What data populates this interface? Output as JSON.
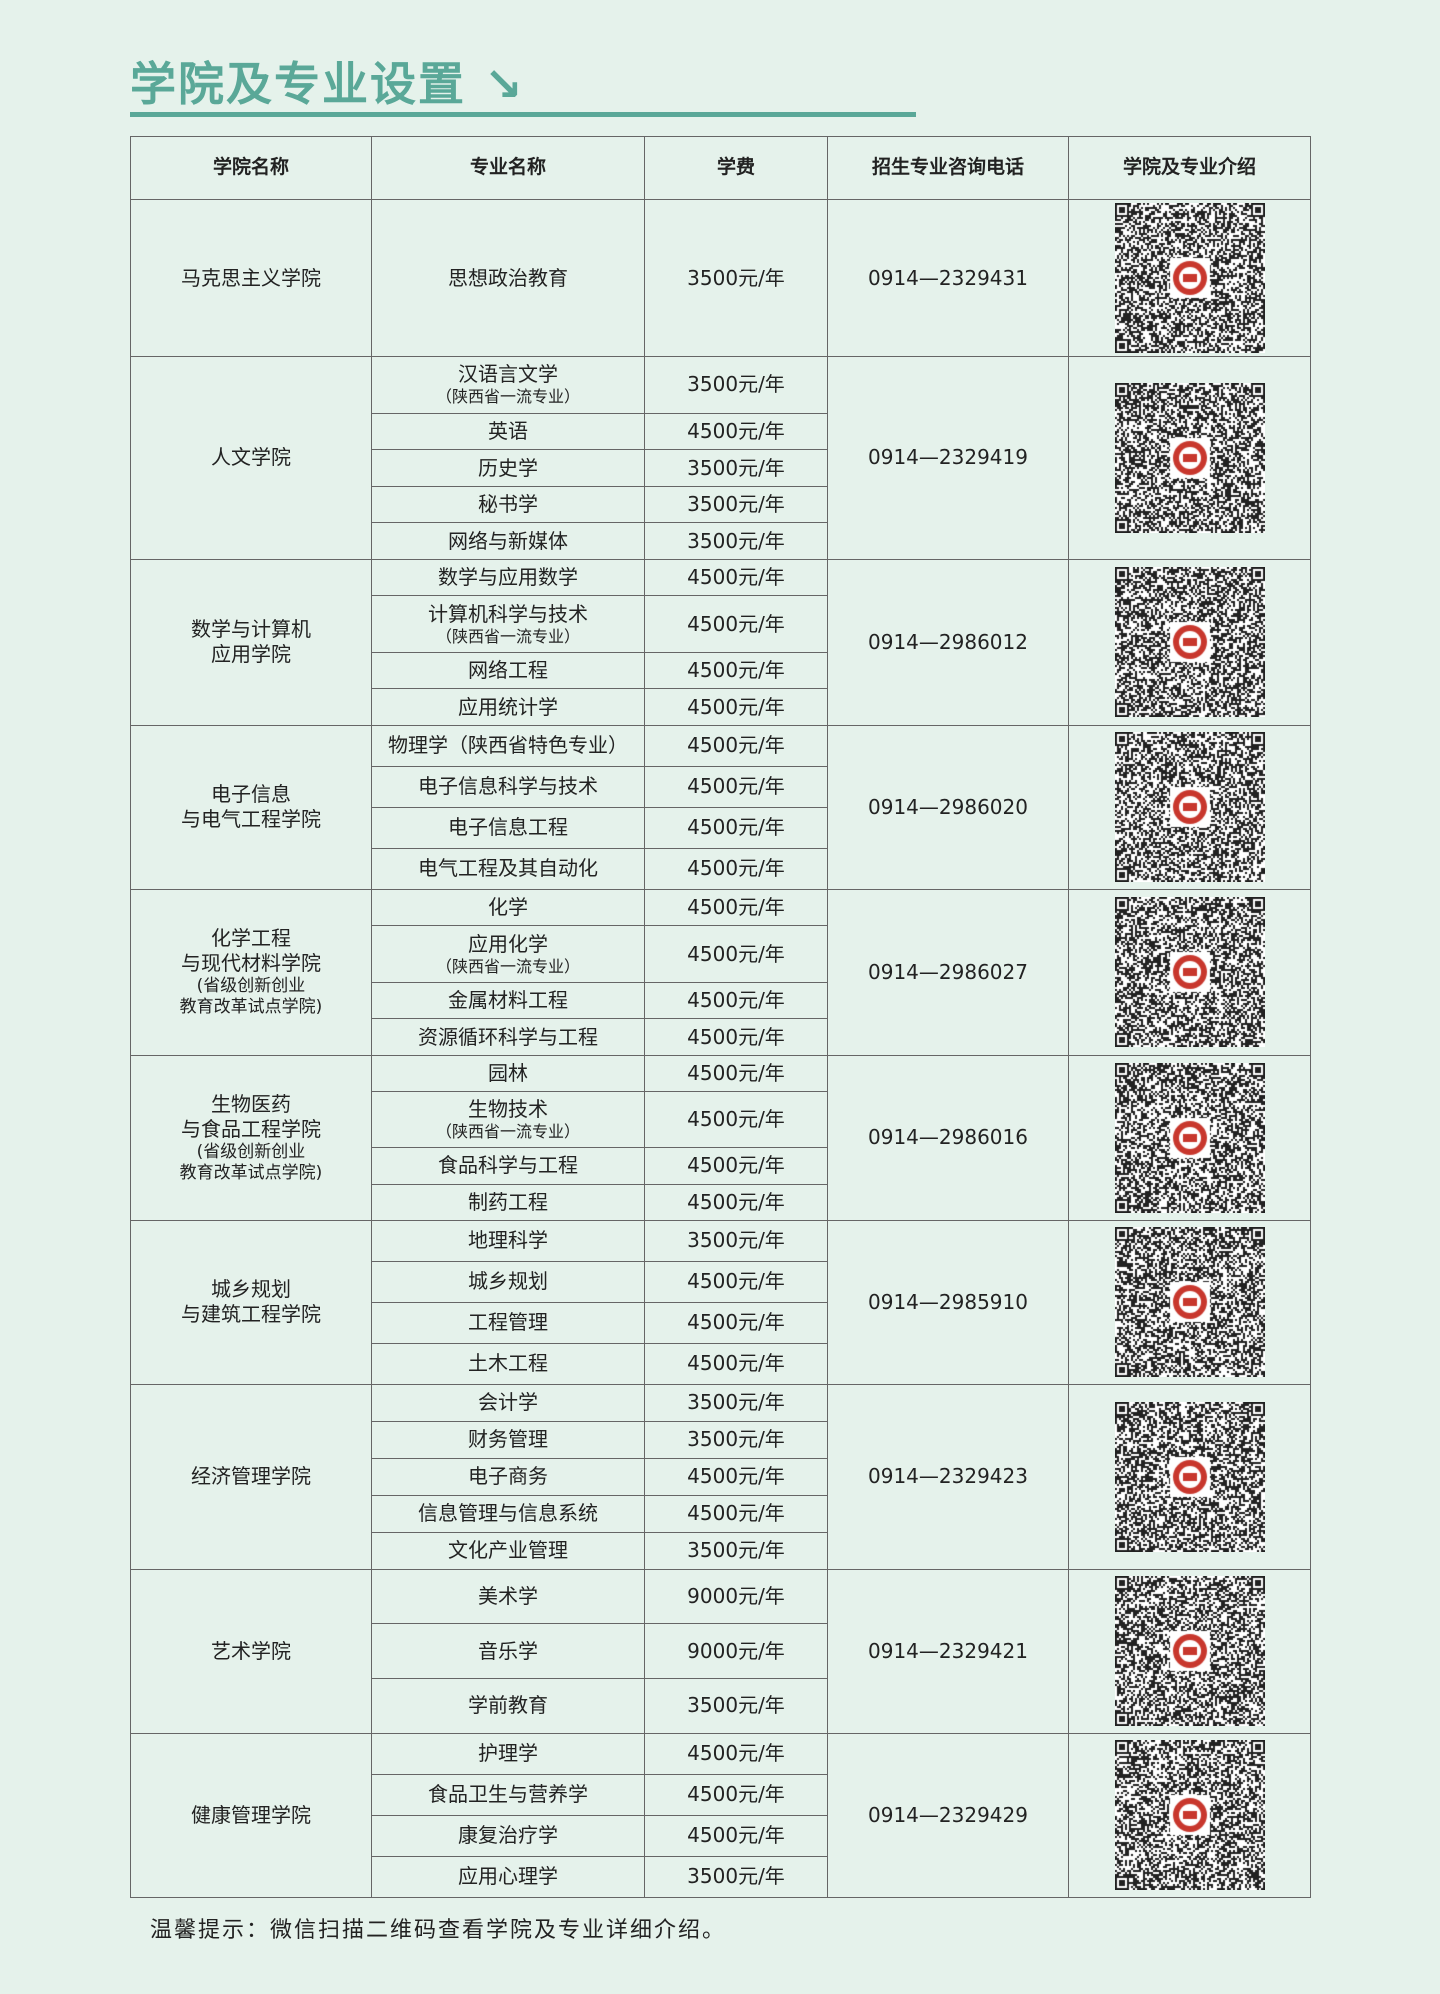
{
  "title": "学院及专业设置",
  "title_icon": "arrow-down-right-icon",
  "colors": {
    "accent": "#5aa898",
    "background": "#e5f2eb",
    "logo_red": "#c8372d"
  },
  "headers": [
    "学院名称",
    "专业名称",
    "学费",
    "招生专业咨询电话",
    "学院及专业介绍"
  ],
  "colleges": [
    {
      "name": "马克思主义学院",
      "note": "",
      "phone": "0914—2329431",
      "majors": [
        {
          "name": "思想政治教育",
          "note": "",
          "fee": "3500元/年"
        }
      ]
    },
    {
      "name": "人文学院",
      "note": "",
      "phone": "0914—2329419",
      "majors": [
        {
          "name": "汉语言文学",
          "note": "（陕西省一流专业）",
          "fee": "3500元/年"
        },
        {
          "name": "英语",
          "note": "",
          "fee": "4500元/年"
        },
        {
          "name": "历史学",
          "note": "",
          "fee": "3500元/年"
        },
        {
          "name": "秘书学",
          "note": "",
          "fee": "3500元/年"
        },
        {
          "name": "网络与新媒体",
          "note": "",
          "fee": "3500元/年"
        }
      ]
    },
    {
      "name": "数学与计算机\n应用学院",
      "note": "",
      "phone": "0914—2986012",
      "majors": [
        {
          "name": "数学与应用数学",
          "note": "",
          "fee": "4500元/年"
        },
        {
          "name": "计算机科学与技术",
          "note": "（陕西省一流专业）",
          "fee": "4500元/年"
        },
        {
          "name": "网络工程",
          "note": "",
          "fee": "4500元/年"
        },
        {
          "name": "应用统计学",
          "note": "",
          "fee": "4500元/年"
        }
      ]
    },
    {
      "name": "电子信息\n与电气工程学院",
      "note": "",
      "phone": "0914—2986020",
      "majors": [
        {
          "name": "物理学（陕西省特色专业）",
          "note": "",
          "fee": "4500元/年"
        },
        {
          "name": "电子信息科学与技术",
          "note": "",
          "fee": "4500元/年"
        },
        {
          "name": "电子信息工程",
          "note": "",
          "fee": "4500元/年"
        },
        {
          "name": "电气工程及其自动化",
          "note": "",
          "fee": "4500元/年"
        }
      ]
    },
    {
      "name": "化学工程\n与现代材料学院",
      "note": "(省级创新创业\n教育改革试点学院)",
      "phone": "0914—2986027",
      "majors": [
        {
          "name": "化学",
          "note": "",
          "fee": "4500元/年"
        },
        {
          "name": "应用化学",
          "note": "（陕西省一流专业）",
          "fee": "4500元/年"
        },
        {
          "name": "金属材料工程",
          "note": "",
          "fee": "4500元/年"
        },
        {
          "name": "资源循环科学与工程",
          "note": "",
          "fee": "4500元/年"
        }
      ]
    },
    {
      "name": "生物医药\n与食品工程学院",
      "note": "(省级创新创业\n教育改革试点学院)",
      "phone": "0914—2986016",
      "majors": [
        {
          "name": "园林",
          "note": "",
          "fee": "4500元/年"
        },
        {
          "name": "生物技术",
          "note": "（陕西省一流专业）",
          "fee": "4500元/年"
        },
        {
          "name": "食品科学与工程",
          "note": "",
          "fee": "4500元/年"
        },
        {
          "name": "制药工程",
          "note": "",
          "fee": "4500元/年"
        }
      ]
    },
    {
      "name": "城乡规划\n与建筑工程学院",
      "note": "",
      "phone": "0914—2985910",
      "majors": [
        {
          "name": "地理科学",
          "note": "",
          "fee": "3500元/年"
        },
        {
          "name": "城乡规划",
          "note": "",
          "fee": "4500元/年"
        },
        {
          "name": "工程管理",
          "note": "",
          "fee": "4500元/年"
        },
        {
          "name": "土木工程",
          "note": "",
          "fee": "4500元/年"
        }
      ]
    },
    {
      "name": "经济管理学院",
      "note": "",
      "phone": "0914—2329423",
      "majors": [
        {
          "name": "会计学",
          "note": "",
          "fee": "3500元/年"
        },
        {
          "name": "财务管理",
          "note": "",
          "fee": "3500元/年"
        },
        {
          "name": "电子商务",
          "note": "",
          "fee": "4500元/年"
        },
        {
          "name": "信息管理与信息系统",
          "note": "",
          "fee": "4500元/年"
        },
        {
          "name": "文化产业管理",
          "note": "",
          "fee": "3500元/年"
        }
      ]
    },
    {
      "name": "艺术学院",
      "note": "",
      "phone": "0914—2329421",
      "majors": [
        {
          "name": "美术学",
          "note": "",
          "fee": "9000元/年"
        },
        {
          "name": "音乐学",
          "note": "",
          "fee": "9000元/年"
        },
        {
          "name": "学前教育",
          "note": "",
          "fee": "3500元/年"
        }
      ]
    },
    {
      "name": "健康管理学院",
      "note": "",
      "phone": "0914—2329429",
      "majors": [
        {
          "name": "护理学",
          "note": "",
          "fee": "4500元/年"
        },
        {
          "name": "食品卫生与营养学",
          "note": "",
          "fee": "4500元/年"
        },
        {
          "name": "康复治疗学",
          "note": "",
          "fee": "4500元/年"
        },
        {
          "name": "应用心理学",
          "note": "",
          "fee": "3500元/年"
        }
      ]
    }
  ],
  "qr_icon": "qr-code-icon",
  "footer_tip": "温馨提示：微信扫描二维码查看学院及专业详细介绍。"
}
